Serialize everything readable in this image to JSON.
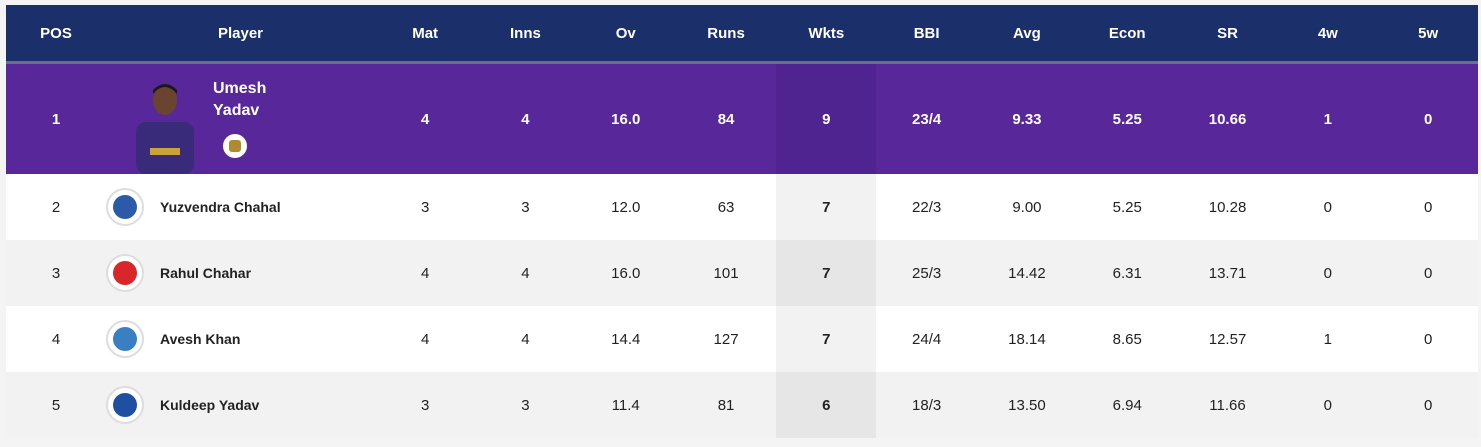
{
  "headers": [
    "POS",
    "Player",
    "Mat",
    "Inns",
    "Ov",
    "Runs",
    "Wkts",
    "BBI",
    "Avg",
    "Econ",
    "SR",
    "4w",
    "5w"
  ],
  "leader": {
    "pos": "1",
    "first": "Umesh",
    "last": "Yadav",
    "team_icon": "kkr-logo",
    "stats": [
      "4",
      "4",
      "16.0",
      "84",
      "9",
      "23/4",
      "9.33",
      "5.25",
      "10.66",
      "1",
      "0"
    ]
  },
  "rows": [
    {
      "pos": "2",
      "name": "Yuzvendra Chahal",
      "team_icon": "rr-logo",
      "color": "#2a5aa8",
      "stats": [
        "3",
        "3",
        "12.0",
        "63",
        "7",
        "22/3",
        "9.00",
        "5.25",
        "10.28",
        "0",
        "0"
      ]
    },
    {
      "pos": "3",
      "name": "Rahul Chahar",
      "team_icon": "pbks-logo",
      "color": "#d8262b",
      "stats": [
        "4",
        "4",
        "16.0",
        "101",
        "7",
        "25/3",
        "14.42",
        "6.31",
        "13.71",
        "0",
        "0"
      ]
    },
    {
      "pos": "4",
      "name": "Avesh Khan",
      "team_icon": "lsg-logo",
      "color": "#3a7fc1",
      "stats": [
        "4",
        "4",
        "14.4",
        "127",
        "7",
        "24/4",
        "18.14",
        "8.65",
        "12.57",
        "1",
        "0"
      ]
    },
    {
      "pos": "5",
      "name": "Kuldeep Yadav",
      "team_icon": "dc-logo",
      "color": "#1f4fa0",
      "stats": [
        "3",
        "3",
        "11.4",
        "81",
        "6",
        "18/3",
        "13.50",
        "6.94",
        "11.66",
        "0",
        "0"
      ]
    }
  ]
}
